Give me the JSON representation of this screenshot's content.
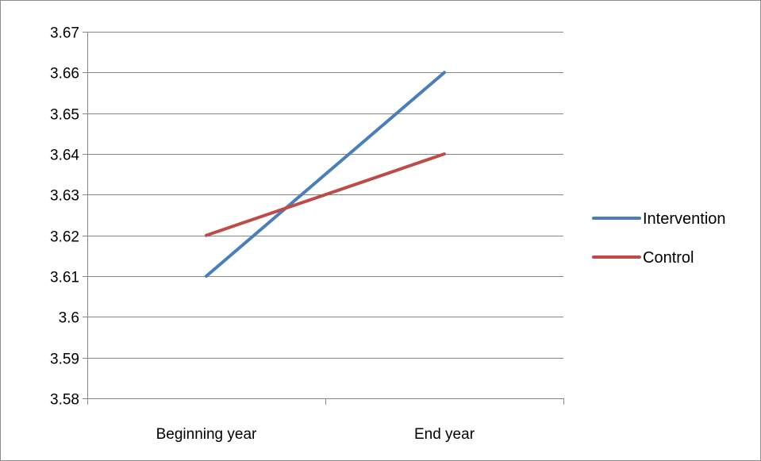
{
  "chart_data": {
    "type": "line",
    "title": "",
    "xlabel": "",
    "ylabel": "",
    "categories": [
      "Beginning year",
      "End year"
    ],
    "ylim": [
      3.58,
      3.67
    ],
    "yticks": [
      "3.58",
      "3.59",
      "3.6",
      "3.61",
      "3.62",
      "3.63",
      "3.64",
      "3.65",
      "3.66",
      "3.67"
    ],
    "grid": true,
    "legend_position": "right",
    "series": [
      {
        "name": "Intervention",
        "values": [
          3.61,
          3.66
        ],
        "color": "#4a7ebb"
      },
      {
        "name": "Control",
        "values": [
          3.62,
          3.64
        ],
        "color": "#be4b48"
      }
    ]
  }
}
